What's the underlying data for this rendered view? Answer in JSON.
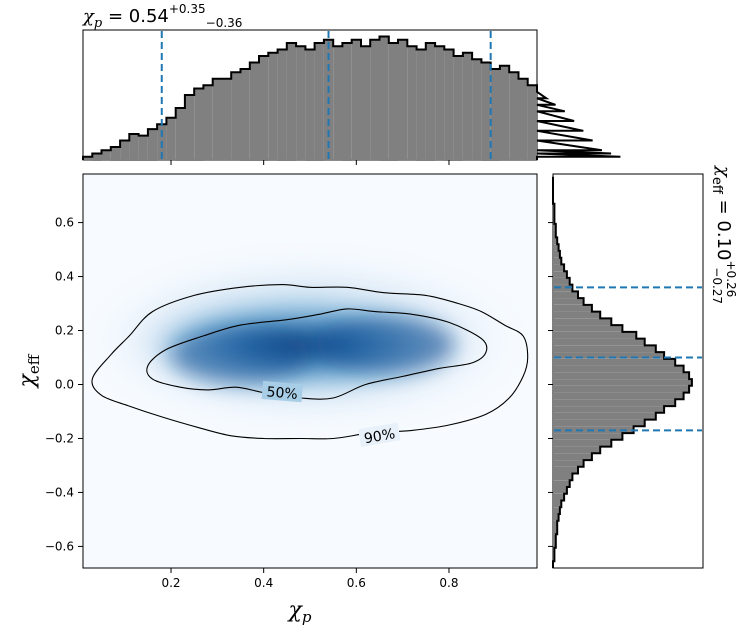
{
  "chart_data": {
    "type": "heatmap",
    "xlabel": "χp",
    "ylabel": "χeff",
    "xlim": [
      0.01,
      0.99
    ],
    "ylim": [
      -0.68,
      0.78
    ],
    "xticks": [
      0.2,
      0.4,
      0.6,
      0.8
    ],
    "xtick_labels": [
      "0.2",
      "0.4",
      "0.6",
      "0.8"
    ],
    "yticks": [
      -0.6,
      -0.4,
      -0.2,
      0.0,
      0.2,
      0.4,
      0.6
    ],
    "ytick_labels": [
      "−0.6",
      "−0.4",
      "−0.2",
      "0.0",
      "0.2",
      "0.4",
      "0.6"
    ],
    "grid": false,
    "colormap": [
      "#f7fbff",
      "#deebf7",
      "#9ecae1",
      "#4292c6",
      "#08519c"
    ],
    "density_peak": {
      "x": 0.5,
      "y": 0.1
    },
    "contours": [
      {
        "label": "50%",
        "points": [
          [
            0.15,
            0.07
          ],
          [
            0.19,
            0.13
          ],
          [
            0.27,
            0.18
          ],
          [
            0.35,
            0.22
          ],
          [
            0.45,
            0.24
          ],
          [
            0.52,
            0.26
          ],
          [
            0.58,
            0.28
          ],
          [
            0.64,
            0.27
          ],
          [
            0.72,
            0.26
          ],
          [
            0.8,
            0.23
          ],
          [
            0.87,
            0.17
          ],
          [
            0.88,
            0.12
          ],
          [
            0.85,
            0.08
          ],
          [
            0.78,
            0.06
          ],
          [
            0.7,
            0.03
          ],
          [
            0.62,
            0.0
          ],
          [
            0.55,
            -0.05
          ],
          [
            0.48,
            -0.05
          ],
          [
            0.4,
            -0.03
          ],
          [
            0.34,
            -0.01
          ],
          [
            0.28,
            -0.02
          ],
          [
            0.22,
            -0.01
          ],
          [
            0.16,
            0.02
          ]
        ]
      },
      {
        "label": "90%",
        "points": [
          [
            0.03,
            0.02
          ],
          [
            0.07,
            0.11
          ],
          [
            0.11,
            0.18
          ],
          [
            0.16,
            0.27
          ],
          [
            0.25,
            0.33
          ],
          [
            0.35,
            0.36
          ],
          [
            0.44,
            0.37
          ],
          [
            0.5,
            0.36
          ],
          [
            0.58,
            0.36
          ],
          [
            0.66,
            0.34
          ],
          [
            0.75,
            0.33
          ],
          [
            0.82,
            0.3
          ],
          [
            0.87,
            0.27
          ],
          [
            0.92,
            0.22
          ],
          [
            0.96,
            0.18
          ],
          [
            0.97,
            0.1
          ],
          [
            0.96,
            0.03
          ],
          [
            0.93,
            -0.05
          ],
          [
            0.88,
            -0.11
          ],
          [
            0.8,
            -0.15
          ],
          [
            0.72,
            -0.17
          ],
          [
            0.63,
            -0.18
          ],
          [
            0.55,
            -0.2
          ],
          [
            0.48,
            -0.2
          ],
          [
            0.4,
            -0.2
          ],
          [
            0.33,
            -0.19
          ],
          [
            0.26,
            -0.16
          ],
          [
            0.18,
            -0.12
          ],
          [
            0.11,
            -0.08
          ],
          [
            0.05,
            -0.04
          ]
        ]
      }
    ],
    "contour_labels": [
      {
        "text": "50%",
        "x": 0.44,
        "y": -0.03,
        "rotation": 5
      },
      {
        "text": "90%",
        "x": 0.65,
        "y": -0.19,
        "rotation": -10
      }
    ],
    "marginal_x": {
      "type": "histogram",
      "title_value": "0.54",
      "title_plus": "+0.35",
      "title_minus": "−0.36",
      "title_symbol": "χ",
      "title_subscript": "p",
      "bin_start": 0.01,
      "bin_width": 0.02,
      "counts": [
        2,
        4,
        6,
        8,
        12,
        16,
        15,
        19,
        22,
        26,
        32,
        40,
        44,
        46,
        50,
        50,
        54,
        56,
        60,
        64,
        66,
        68,
        72,
        70,
        68,
        72,
        74,
        70,
        72,
        74,
        70,
        74,
        76,
        72,
        74,
        70,
        68,
        72,
        70,
        68,
        64,
        66,
        62,
        60,
        56,
        58,
        54,
        50,
        46,
        42,
        38,
        34,
        30,
        24,
        18,
        12,
        6,
        4,
        2
      ],
      "max_count": 80,
      "quantile_lines": [
        0.18,
        0.54,
        0.89
      ]
    },
    "marginal_y": {
      "type": "histogram",
      "title_value": "0.10",
      "title_plus": "+0.26",
      "title_minus": "−0.27",
      "title_symbol": "χ",
      "title_subscript": "eff",
      "bin_start": -0.68,
      "bin_width": 0.025,
      "counts": [
        0,
        1,
        1,
        2,
        2,
        3,
        3,
        4,
        5,
        6,
        8,
        10,
        12,
        14,
        18,
        22,
        28,
        34,
        42,
        50,
        58,
        66,
        74,
        80,
        88,
        94,
        98,
        100,
        98,
        94,
        88,
        80,
        74,
        66,
        60,
        50,
        42,
        34,
        28,
        22,
        18,
        14,
        12,
        10,
        8,
        6,
        5,
        4,
        3,
        2,
        2,
        1,
        1,
        1,
        0,
        0,
        0,
        0
      ],
      "max_count": 108,
      "quantile_lines": [
        -0.17,
        0.1,
        0.36
      ]
    }
  }
}
